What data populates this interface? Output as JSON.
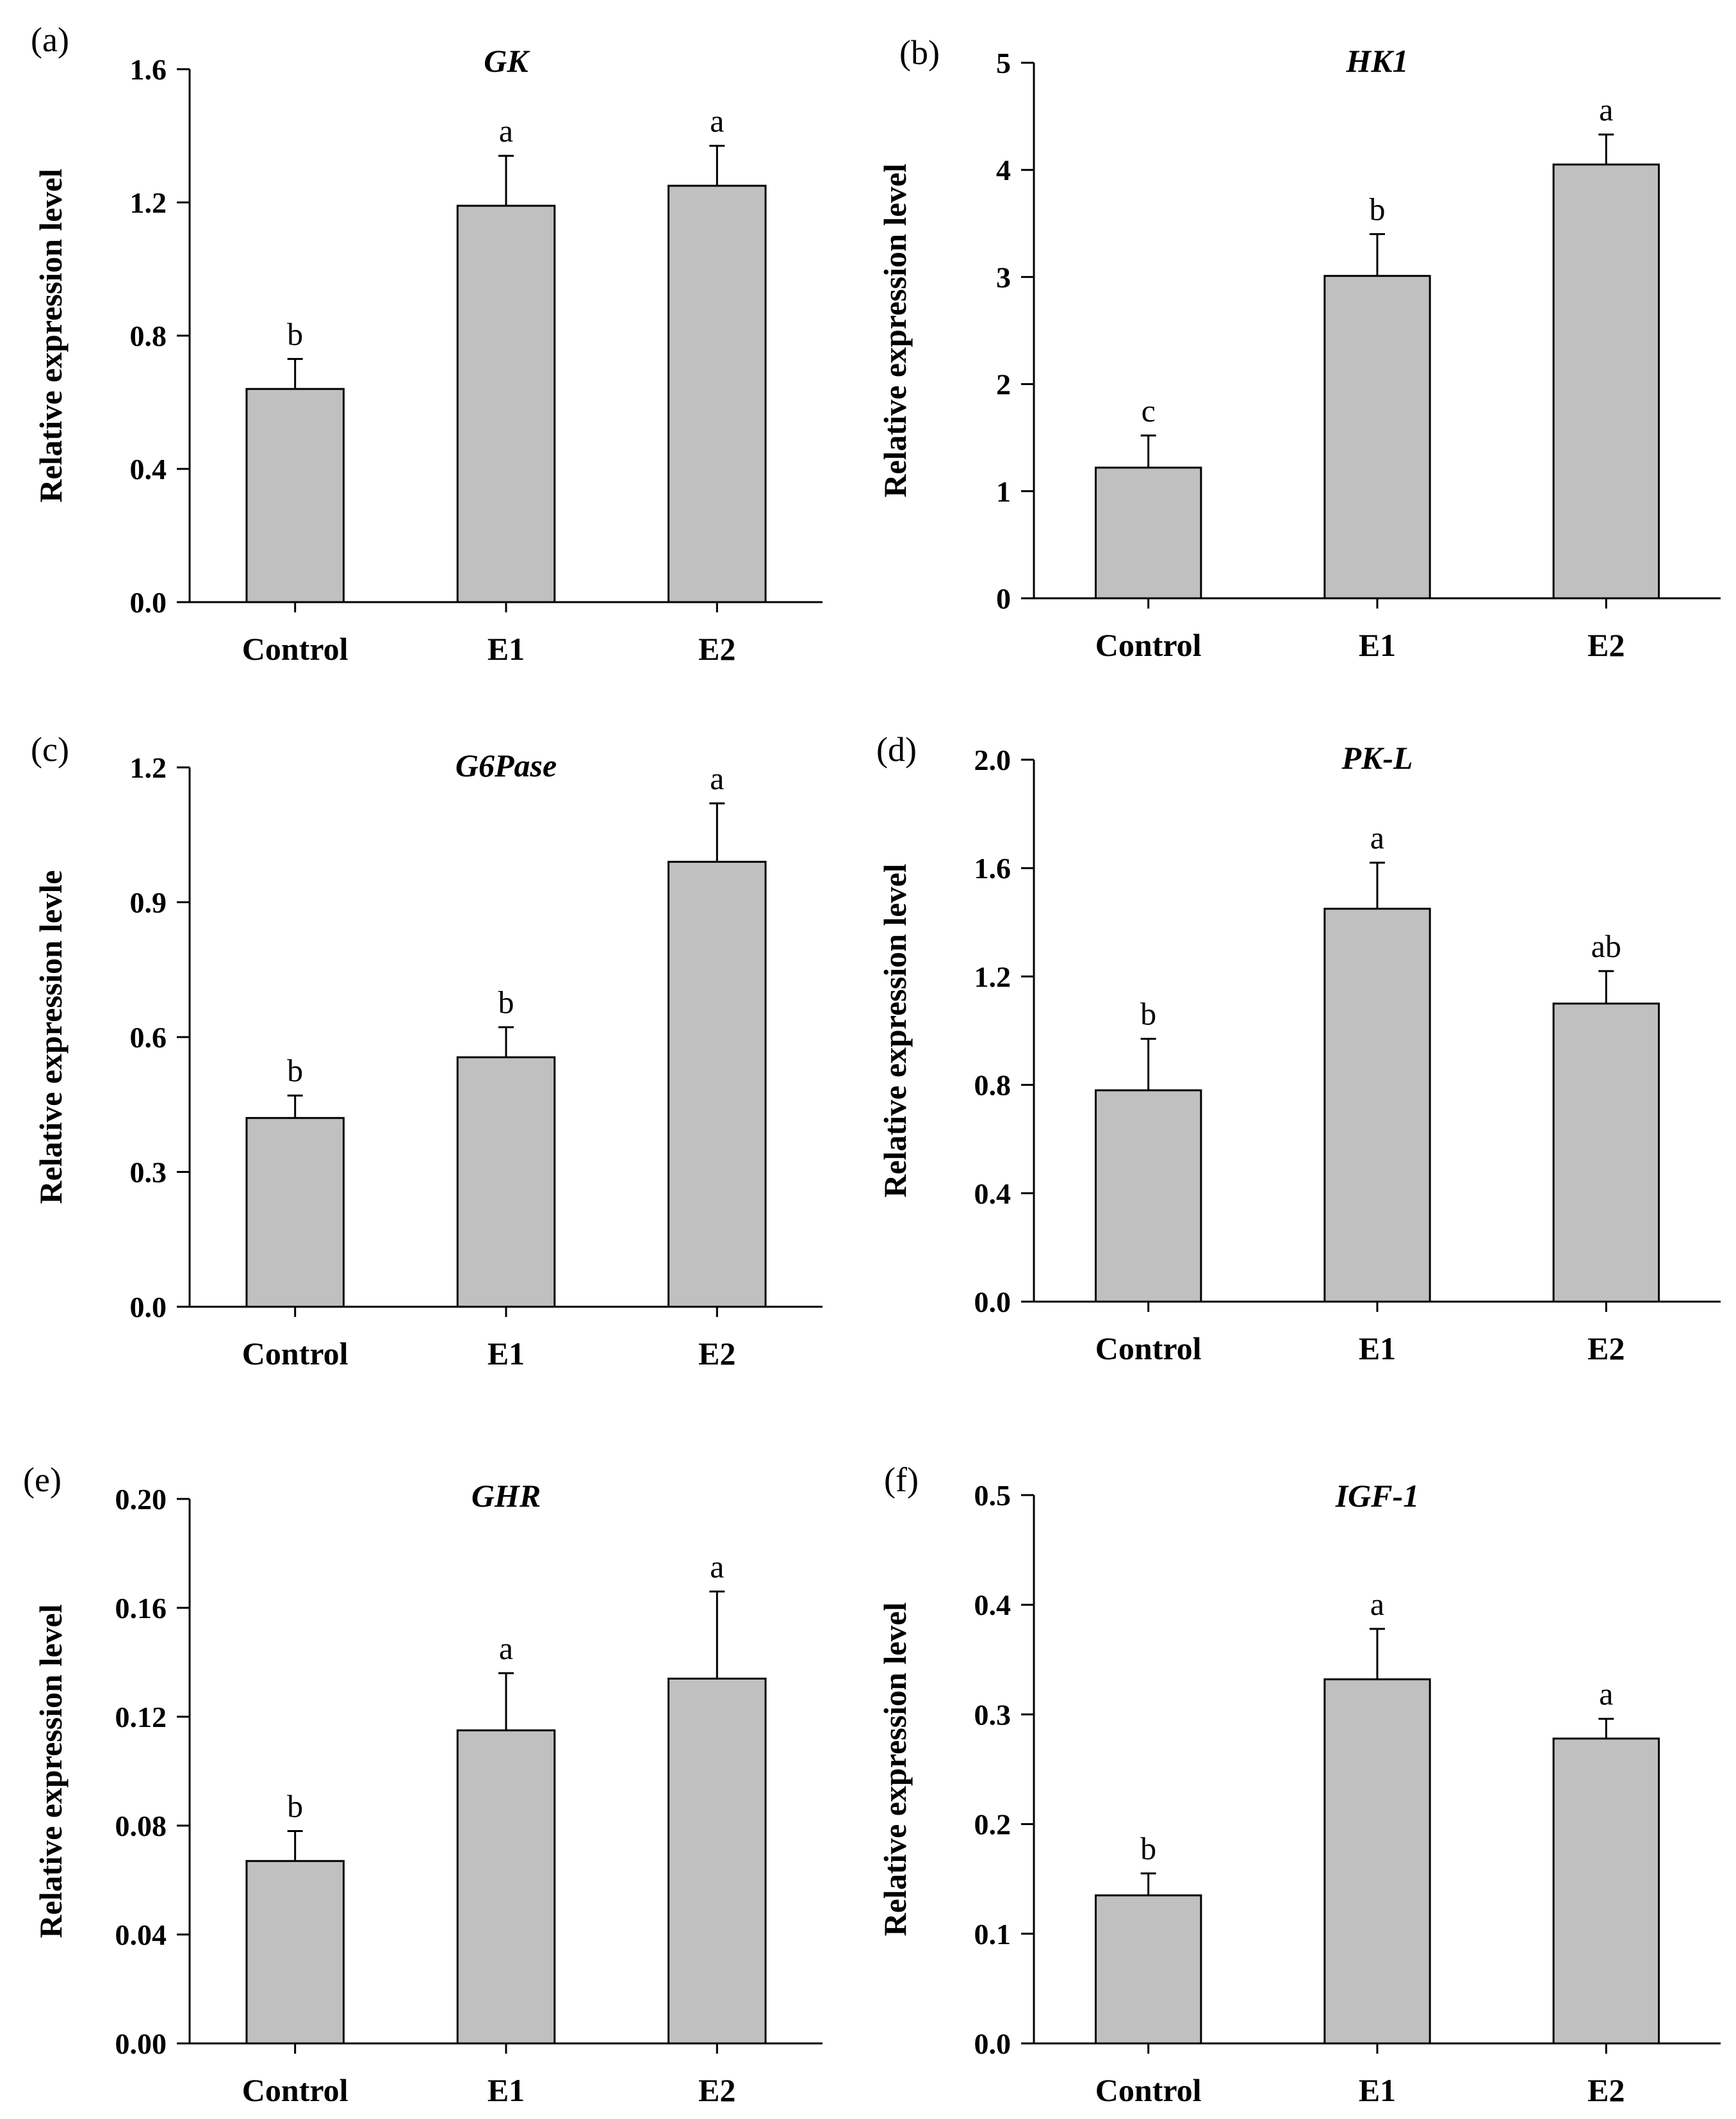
{
  "figure": {
    "bar_color": "#c0c0c0",
    "axis_color": "#000000"
  },
  "chart_data": [
    {
      "panel": "(a)",
      "type": "bar",
      "title": "GK",
      "ylabel": "Relative expression level",
      "xlabel": "",
      "categories": [
        "Control",
        "E1",
        "E2"
      ],
      "values": [
        0.64,
        1.19,
        1.25
      ],
      "errors": [
        0.09,
        0.15,
        0.12
      ],
      "significance": [
        "b",
        "a",
        "a"
      ],
      "ylim": [
        0,
        1.6
      ],
      "yticks": [
        0,
        0.4,
        0.8,
        1.2,
        1.6
      ],
      "ytick_labels": [
        "0.0",
        "0.4",
        "0.8",
        "1.2",
        "1.6"
      ]
    },
    {
      "panel": "(b)",
      "type": "bar",
      "title": "HK1",
      "ylabel": "Relative expression level",
      "xlabel": "",
      "categories": [
        "Control",
        "E1",
        "E2"
      ],
      "values": [
        1.22,
        3.01,
        4.05
      ],
      "errors": [
        0.3,
        0.39,
        0.28
      ],
      "significance": [
        "c",
        "b",
        "a"
      ],
      "ylim": [
        0,
        5
      ],
      "yticks": [
        0,
        1,
        2,
        3,
        4,
        5
      ],
      "ytick_labels": [
        "0",
        "1",
        "2",
        "3",
        "4",
        "5"
      ]
    },
    {
      "panel": "(c)",
      "type": "bar",
      "title": "G6Pase",
      "ylabel": "Relative expression levle",
      "xlabel": "",
      "categories": [
        "Control",
        "E1",
        "E2"
      ],
      "values": [
        0.42,
        0.555,
        0.99
      ],
      "errors": [
        0.05,
        0.067,
        0.13
      ],
      "significance": [
        "b",
        "b",
        "a"
      ],
      "ylim": [
        0,
        1.2
      ],
      "yticks": [
        0,
        0.3,
        0.6,
        0.9,
        1.2
      ],
      "ytick_labels": [
        "0.0",
        "0.3",
        "0.6",
        "0.9",
        "1.2"
      ]
    },
    {
      "panel": "(d)",
      "type": "bar",
      "title": "PK-L",
      "ylabel": "Relative expression level",
      "xlabel": "",
      "categories": [
        "Control",
        "E1",
        "E2"
      ],
      "values": [
        0.78,
        1.45,
        1.1
      ],
      "errors": [
        0.19,
        0.17,
        0.12
      ],
      "significance": [
        "b",
        "a",
        "ab"
      ],
      "ylim": [
        0,
        2.0
      ],
      "yticks": [
        0,
        0.4,
        0.8,
        1.2,
        1.6,
        2.0
      ],
      "ytick_labels": [
        "0.0",
        "0.4",
        "0.8",
        "1.2",
        "1.6",
        "2.0"
      ]
    },
    {
      "panel": "(e)",
      "type": "bar",
      "title": "GHR",
      "ylabel": "Relative expression level",
      "xlabel": "",
      "categories": [
        "Control",
        "E1",
        "E2"
      ],
      "values": [
        0.067,
        0.115,
        0.134
      ],
      "errors": [
        0.011,
        0.021,
        0.032
      ],
      "significance": [
        "b",
        "a",
        "a"
      ],
      "ylim": [
        0,
        0.2
      ],
      "yticks": [
        0,
        0.04,
        0.08,
        0.12,
        0.16,
        0.2
      ],
      "ytick_labels": [
        "0.00",
        "0.04",
        "0.08",
        "0.12",
        "0.16",
        "0.20"
      ]
    },
    {
      "panel": "(f)",
      "type": "bar",
      "title": "IGF-1",
      "ylabel": "Relative expression level",
      "xlabel": "",
      "categories": [
        "Control",
        "E1",
        "E2"
      ],
      "values": [
        0.135,
        0.332,
        0.278
      ],
      "errors": [
        0.02,
        0.046,
        0.018
      ],
      "significance": [
        "b",
        "a",
        "a"
      ],
      "ylim": [
        0,
        0.5
      ],
      "yticks": [
        0,
        0.1,
        0.2,
        0.3,
        0.4,
        0.5
      ],
      "ytick_labels": [
        "0.0",
        "0.1",
        "0.2",
        "0.3",
        "0.4",
        "0.5"
      ]
    }
  ]
}
